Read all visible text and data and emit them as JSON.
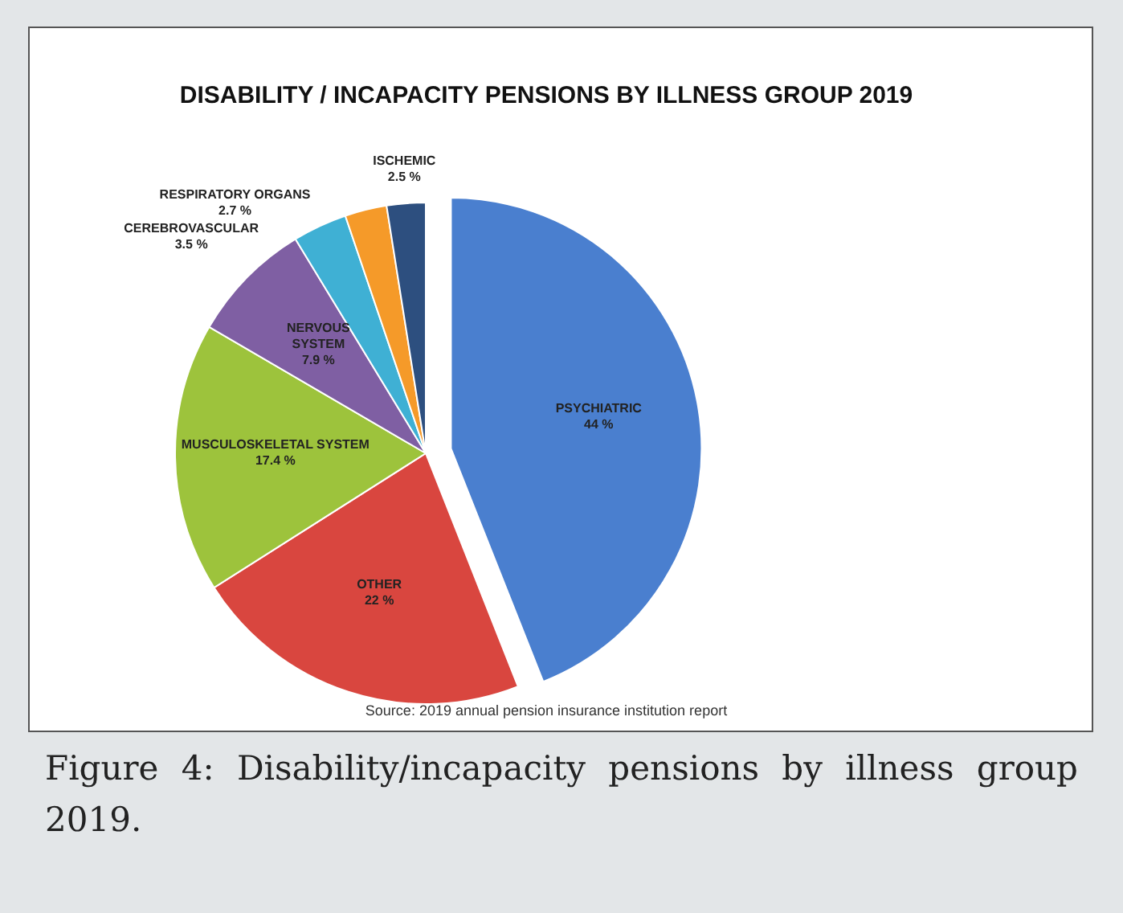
{
  "chart_data": {
    "type": "pie",
    "title": "DISABILITY / INCAPACITY PENSIONS BY ILLNESS GROUP 2019",
    "categories": [
      "PSYCHIATRIC",
      "OTHER",
      "MUSCULOSKELETAL SYSTEM",
      "NERVOUS SYSTEM",
      "CEREBROVASCULAR",
      "RESPIRATORY ORGANS",
      "ISCHEMIC"
    ],
    "values": [
      44,
      22,
      17.4,
      7.9,
      3.5,
      2.7,
      2.5
    ],
    "colors": [
      "#4a7fcf",
      "#d9463f",
      "#9dc33c",
      "#7f5fa3",
      "#3fb0d4",
      "#f59a29",
      "#2d4f7f"
    ],
    "value_labels": [
      "44 %",
      "22 %",
      "17.4 %",
      "7.9 %",
      "3.5 %",
      "2.7 %",
      "2.5 %"
    ],
    "annotations": [
      "Source: 2019 annual pension insurance institution report",
      "Figure 4: Disability/incapacity pensions by illness group 2019."
    ]
  }
}
